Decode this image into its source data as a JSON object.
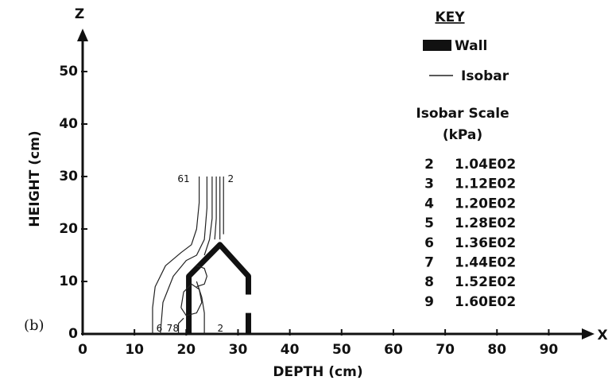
{
  "chart_data": {
    "type": "contour",
    "panel_label": "(b)",
    "xlabel": "DEPTH (cm)",
    "ylabel": "HEIGHT (cm)",
    "x_axis_name": "X",
    "y_axis_name": "Z",
    "xlim": [
      0,
      95
    ],
    "ylim": [
      0,
      55
    ],
    "xticks": [
      0,
      10,
      20,
      30,
      40,
      50,
      60,
      70,
      80,
      90
    ],
    "yticks": [
      0,
      10,
      20,
      30,
      40,
      50
    ],
    "series": [
      {
        "name": "Wall",
        "color": "#111111",
        "x": [
          20.5,
          20.5,
          26.5,
          32,
          32,
          null,
          32,
          32
        ],
        "y": [
          0,
          11,
          17,
          11,
          7.5,
          null,
          4,
          0
        ]
      },
      {
        "name": "Isobar",
        "color": "#222222",
        "lines": [
          {
            "x": [
              13.5,
              13.5,
              14,
              16,
              19,
              21,
              22,
              22.5,
              22.5
            ],
            "y": [
              0,
              5,
              9,
              13,
              15.5,
              17,
              20,
              25,
              30
            ]
          },
          {
            "x": [
              15,
              15.5,
              17.5,
              20,
              22,
              23.5,
              24,
              24
            ],
            "y": [
              0,
              6,
              11,
              14,
              15,
              18,
              24,
              30
            ]
          },
          {
            "x": [
              19,
              19.5,
              21,
              22.5,
              23,
              22,
              20,
              19
            ],
            "y": [
              5,
              8,
              9.5,
              8.5,
              6,
              4,
              3.5,
              5
            ]
          },
          {
            "x": [
              18.5,
              18.5,
              19.5
            ],
            "y": [
              0,
              2,
              3
            ]
          },
          {
            "x": [
              25,
              25,
              24.5,
              23.5
            ],
            "y": [
              30,
              22,
              18,
              15
            ]
          },
          {
            "x": [
              25.8,
              25.8,
              25.5
            ],
            "y": [
              30,
              22,
              18
            ]
          },
          {
            "x": [
              26.5,
              26.5
            ],
            "y": [
              30,
              18
            ]
          },
          {
            "x": [
              27.2,
              27.2
            ],
            "y": [
              30,
              19
            ]
          },
          {
            "x": [
              23.5,
              23.5,
              23,
              22
            ],
            "y": [
              0,
              4,
              7,
              10
            ]
          },
          {
            "x": [
              22,
              23.5,
              24,
              23.5,
              22
            ],
            "y": [
              13,
              12.5,
              11,
              9.5,
              9
            ]
          }
        ]
      }
    ],
    "annotations": [
      {
        "text": "61",
        "x": 19.5,
        "y": 29.5
      },
      {
        "text": "2",
        "x": 28.6,
        "y": 29.5
      },
      {
        "text": "6",
        "x": 14.8,
        "y": 1
      },
      {
        "text": "7",
        "x": 16.8,
        "y": 1
      },
      {
        "text": "8",
        "x": 18,
        "y": 1
      },
      {
        "text": "2",
        "x": 26.6,
        "y": 1
      }
    ],
    "key": {
      "title": "KEY",
      "scale_title": "Isobar Scale",
      "scale_unit": "(kPa)",
      "scale": [
        {
          "level": 2,
          "value": "1.04E02"
        },
        {
          "level": 3,
          "value": "1.12E02"
        },
        {
          "level": 4,
          "value": "1.20E02"
        },
        {
          "level": 5,
          "value": "1.28E02"
        },
        {
          "level": 6,
          "value": "1.36E02"
        },
        {
          "level": 7,
          "value": "1.44E02"
        },
        {
          "level": 8,
          "value": "1.52E02"
        },
        {
          "level": 9,
          "value": "1.60E02"
        }
      ]
    }
  }
}
